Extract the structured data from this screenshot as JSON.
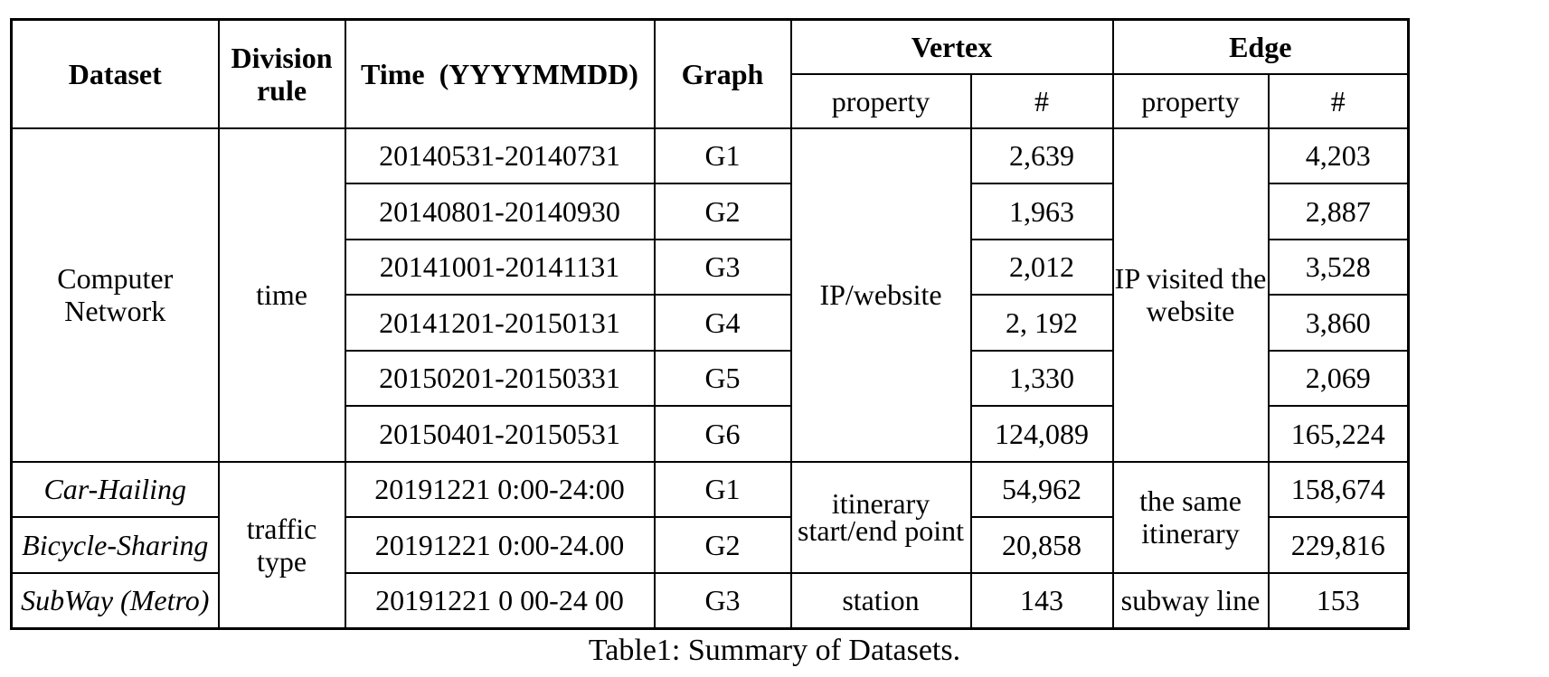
{
  "header": {
    "dataset": "Dataset",
    "division_rule": "Division rule",
    "time": "Time  (YYYYMMDD)",
    "graph": "Graph",
    "vertex": "Vertex",
    "edge": "Edge",
    "vertex_property": "property",
    "vertex_count": "#",
    "edge_property": "property",
    "edge_count": "#"
  },
  "groups": {
    "computer_network": {
      "dataset": "Computer Network",
      "division_rule": "time",
      "vertex_property": "IP/website",
      "edge_property": "IP visited the website"
    },
    "traffic": {
      "division_rule": "traffic type",
      "vertex_property_shared": "itinerary start/end point",
      "edge_property_shared": "the same itinerary"
    }
  },
  "rows": [
    {
      "time": "20140531-20140731",
      "graph": "G1",
      "vertex_count": "2,639",
      "edge_count": "4,203"
    },
    {
      "time": "20140801-20140930",
      "graph": "G2",
      "vertex_count": "1,963",
      "edge_count": "2,887"
    },
    {
      "time": "20141001-20141131",
      "graph": "G3",
      "vertex_count": "2,012",
      "edge_count": "3,528"
    },
    {
      "time": "20141201-20150131",
      "graph": "G4",
      "vertex_count": "2, 192",
      "edge_count": "3,860"
    },
    {
      "time": "20150201-20150331",
      "graph": "G5",
      "vertex_count": "1,330",
      "edge_count": "2,069"
    },
    {
      "time": "20150401-20150531",
      "graph": "G6",
      "vertex_count": "124,089",
      "edge_count": "165,224"
    },
    {
      "dataset": "Car-Hailing",
      "time": "20191221 0:00-24:00",
      "graph": "G1",
      "vertex_count": "54,962",
      "edge_count": "158,674"
    },
    {
      "dataset": "Bicycle-Sharing",
      "time": "20191221 0:00-24.00",
      "graph": "G2",
      "vertex_count": "20,858",
      "edge_count": "229,816"
    },
    {
      "dataset": "SubWay (Metro)",
      "time": "20191221 0 00-24 00",
      "graph": "G3",
      "vertex_property": "station",
      "vertex_count": "143",
      "edge_property": "subway line",
      "edge_count": "153"
    }
  ],
  "caption": "Table1: Summary of Datasets."
}
